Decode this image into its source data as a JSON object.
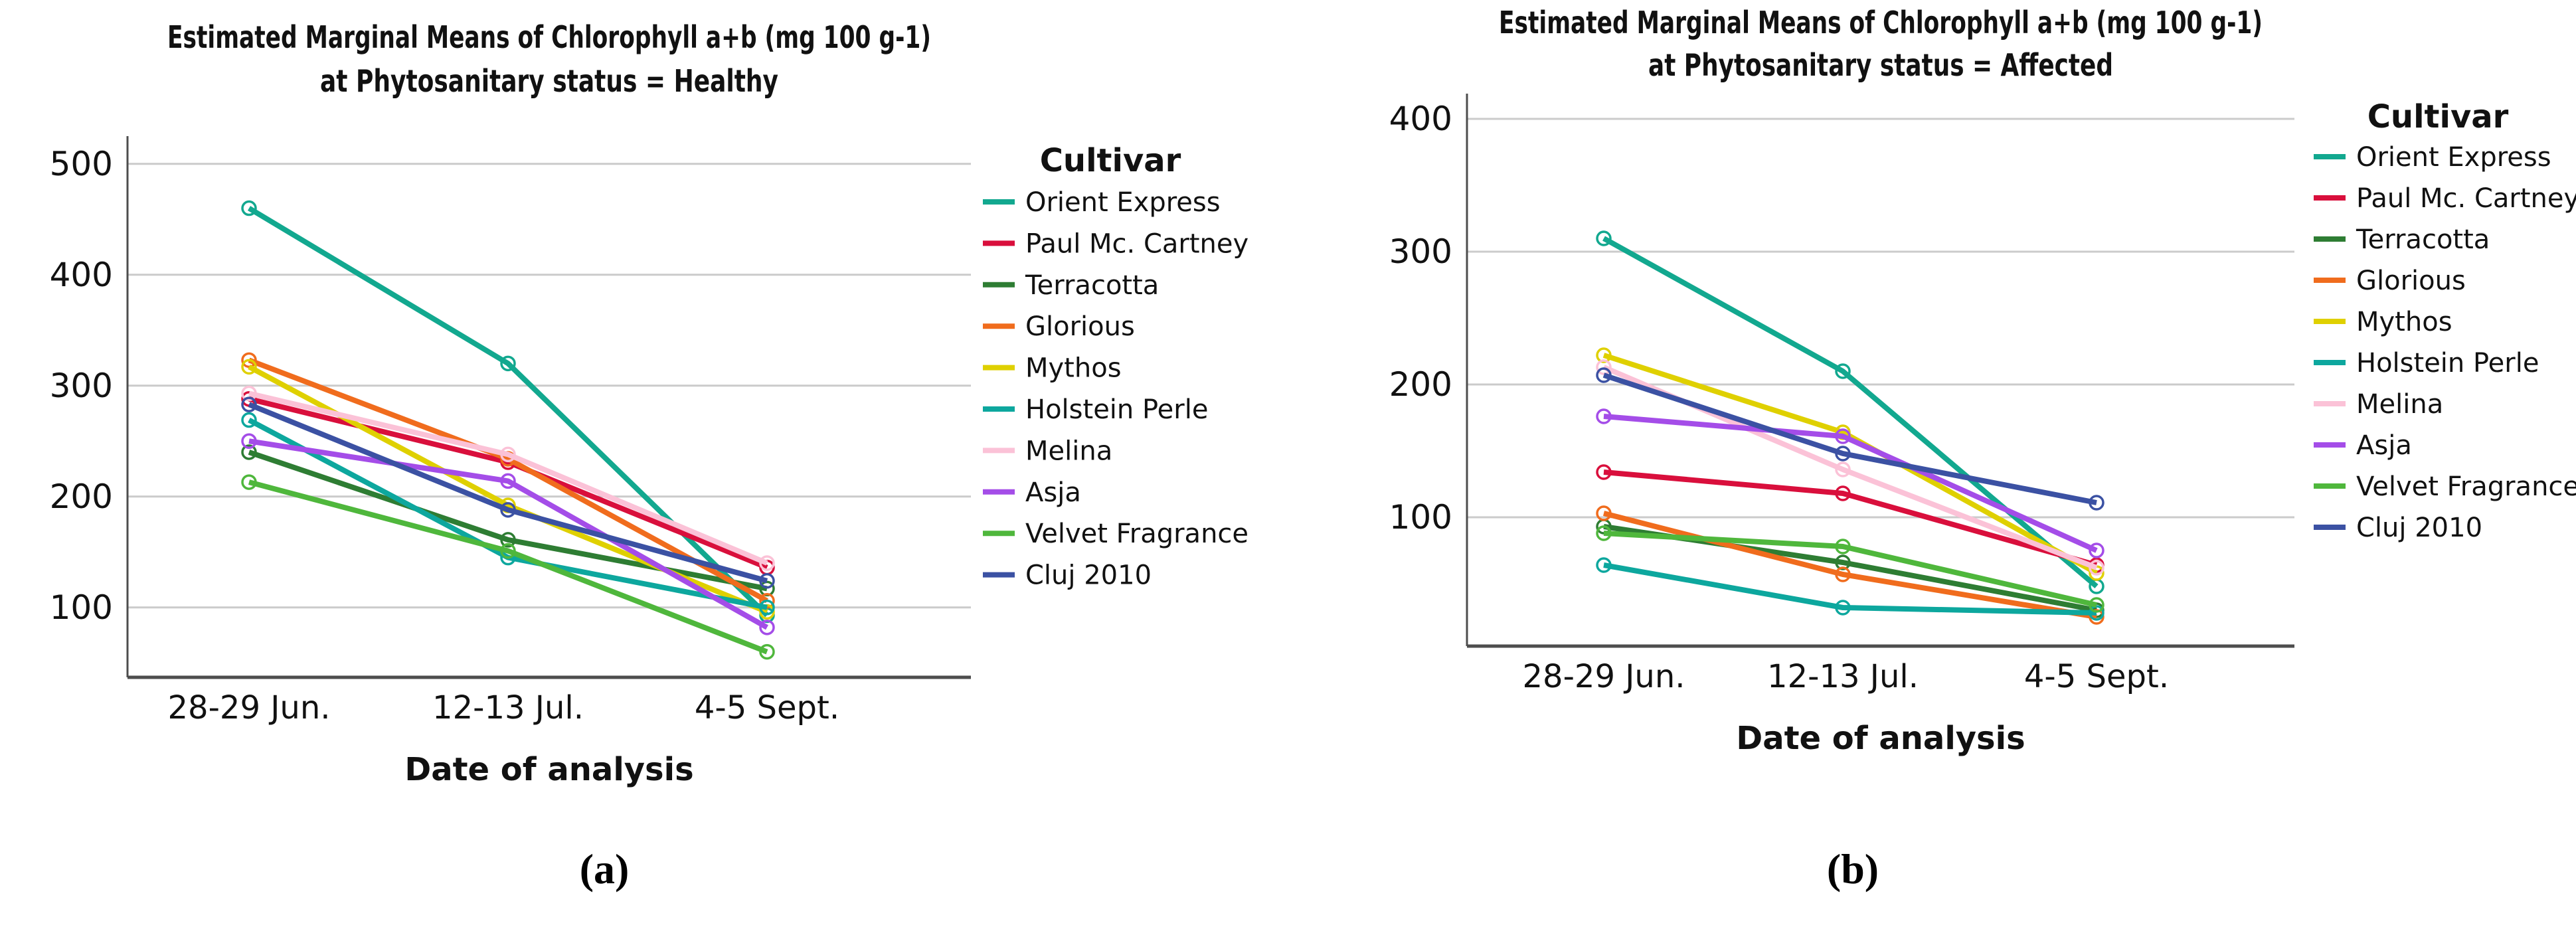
{
  "figure": {
    "background": "#ffffff",
    "grid_color": "#cbcbcb",
    "axis_color": "#4d4d4d",
    "text_color": "#111111"
  },
  "chart_data": [
    {
      "id": "a",
      "type": "line",
      "title": "Estimated Marginal Means of Chlorophyll a+b (mg 100 g-1)",
      "subtitle": "at Phytosanitary status = Healthy",
      "xlabel": "Date of analysis",
      "legend_title": "Cultivar",
      "legend_position": "right",
      "caption": "(a)",
      "grid": "horizontal",
      "categories": [
        "28-29 Jun.",
        "12-13 Jul.",
        "4-5 Sept."
      ],
      "yticks": [
        100,
        200,
        300,
        400,
        500
      ],
      "ylim": [
        37,
        525
      ],
      "series": [
        {
          "name": "Orient Express",
          "color": "#12A88F",
          "values": [
            460,
            320,
            93
          ]
        },
        {
          "name": "Paul Mc. Cartney",
          "color": "#D90F3C",
          "values": [
            288,
            231,
            136
          ]
        },
        {
          "name": "Terracotta",
          "color": "#2E7D33",
          "values": [
            240,
            161,
            117
          ]
        },
        {
          "name": "Glorious",
          "color": "#F06C1D",
          "values": [
            323,
            234,
            106
          ]
        },
        {
          "name": "Mythos",
          "color": "#DFD000",
          "values": [
            317,
            192,
            96
          ]
        },
        {
          "name": "Holstein Perle",
          "color": "#0DA79E",
          "values": [
            269,
            145,
            100
          ]
        },
        {
          "name": "Melina",
          "color": "#FBC2D7",
          "values": [
            293,
            238,
            140
          ]
        },
        {
          "name": "Asja",
          "color": "#A44DE8",
          "values": [
            250,
            214,
            82
          ]
        },
        {
          "name": "Velvet Fragrance",
          "color": "#4FB73C",
          "values": [
            213,
            151,
            60
          ]
        },
        {
          "name": "Cluj 2010",
          "color": "#3B51A3",
          "values": [
            283,
            188,
            124
          ]
        }
      ]
    },
    {
      "id": "b",
      "type": "line",
      "title": "Estimated Marginal Means of Chlorophyll a+b (mg 100 g-1)",
      "subtitle": "at Phytosanitary status = Affected",
      "xlabel": "Date of analysis",
      "legend_title": "Cultivar",
      "legend_position": "right",
      "caption": "(b)",
      "grid": "horizontal",
      "categories": [
        "28-29 Jun.",
        "12-13 Jul.",
        "4-5 Sept."
      ],
      "yticks": [
        100,
        200,
        300,
        400
      ],
      "ylim": [
        3,
        419
      ],
      "series": [
        {
          "name": "Orient Express",
          "color": "#12A88F",
          "values": [
            310,
            210,
            48
          ]
        },
        {
          "name": "Paul Mc. Cartney",
          "color": "#D90F3C",
          "values": [
            134,
            118,
            64
          ]
        },
        {
          "name": "Terracotta",
          "color": "#2E7D33",
          "values": [
            93,
            66,
            30
          ]
        },
        {
          "name": "Glorious",
          "color": "#F06C1D",
          "values": [
            103,
            57,
            25
          ]
        },
        {
          "name": "Mythos",
          "color": "#DFD000",
          "values": [
            222,
            164,
            58
          ]
        },
        {
          "name": "Holstein Perle",
          "color": "#0DA79E",
          "values": [
            64,
            32,
            28
          ]
        },
        {
          "name": "Melina",
          "color": "#FBC2D7",
          "values": [
            213,
            136,
            62
          ]
        },
        {
          "name": "Asja",
          "color": "#A44DE8",
          "values": [
            176,
            161,
            75
          ]
        },
        {
          "name": "Velvet Fragrance",
          "color": "#4FB73C",
          "values": [
            88,
            78,
            34
          ]
        },
        {
          "name": "Cluj 2010",
          "color": "#3B51A3",
          "values": [
            207,
            148,
            111
          ]
        }
      ]
    }
  ]
}
